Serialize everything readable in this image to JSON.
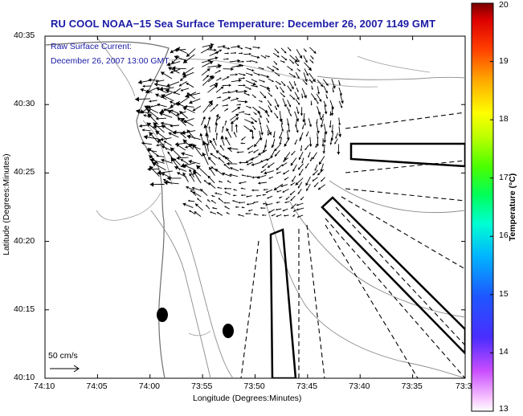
{
  "header": {
    "title": "RU COOL  NOAA−15  Sea Surface Temperature:  December 26, 2007 1149 GMT"
  },
  "overlay": {
    "current_label": "Raw Surface Current:",
    "current_time": "December 26, 2007 13:00 GMT",
    "scale_label": "50 cm/s"
  },
  "axes": {
    "xlabel": "Longitude (Degrees:Minutes)",
    "ylabel": "Latitude (Degrees:Minutes)",
    "xticks": [
      "74:10",
      "74:05",
      "74:00",
      "73:55",
      "73:50",
      "73:45",
      "73:40",
      "73:35",
      "73:3"
    ],
    "yticks": [
      "40:35",
      "40:30",
      "40:25",
      "40:20",
      "40:15",
      "40:10"
    ]
  },
  "colorbar": {
    "label": "Temperature (°C)",
    "ticks": [
      "20",
      "19",
      "18",
      "17",
      "16",
      "15",
      "14",
      "13"
    ]
  }
}
